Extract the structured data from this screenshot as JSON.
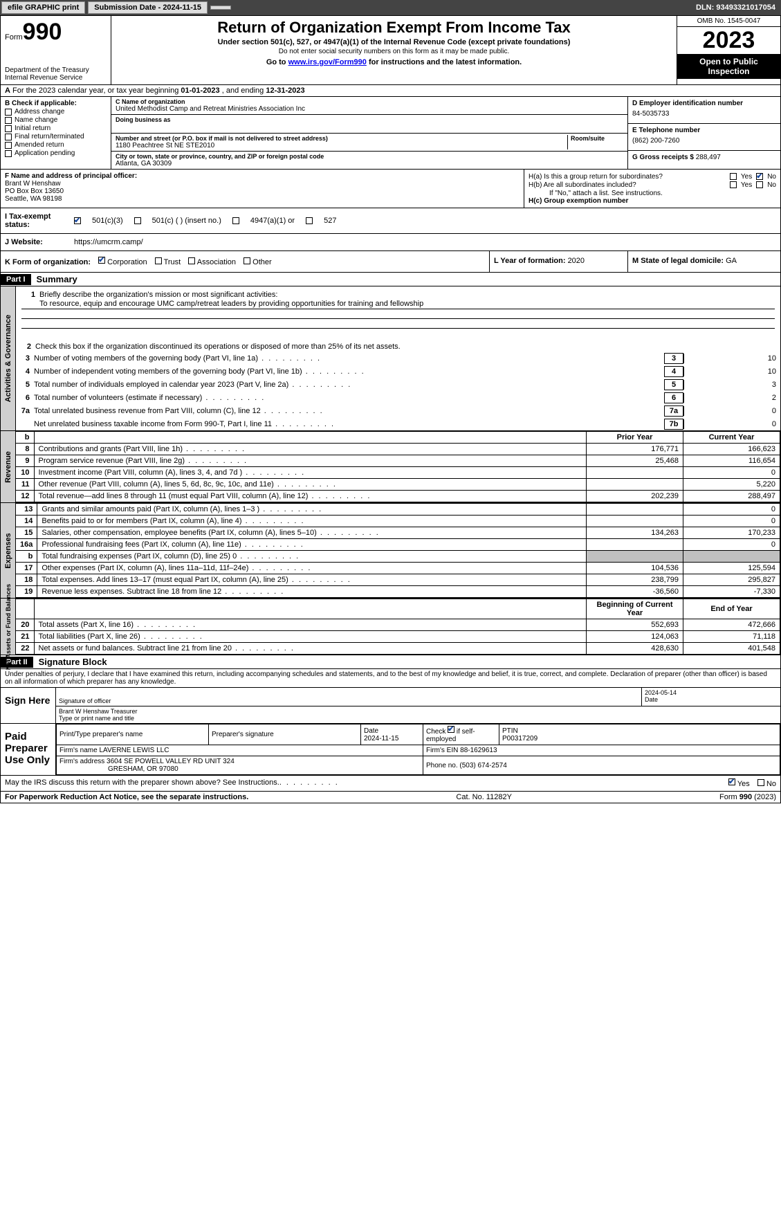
{
  "toolbar": {
    "efile_btn": "efile GRAPHIC print",
    "submission_label": "Submission Date - 2024-11-15",
    "dln": "DLN: 93493321017054"
  },
  "header": {
    "form_word": "Form",
    "form_number": "990",
    "dept": "Department of the Treasury",
    "irs": "Internal Revenue Service",
    "title": "Return of Organization Exempt From Income Tax",
    "subtitle": "Under section 501(c), 527, or 4947(a)(1) of the Internal Revenue Code (except private foundations)",
    "note_ssn": "Do not enter social security numbers on this form as it may be made public.",
    "goto_prefix": "Go to ",
    "goto_link": "www.irs.gov/Form990",
    "goto_suffix": " for instructions and the latest information.",
    "omb": "OMB No. 1545-0047",
    "year": "2023",
    "inspection": "Open to Public Inspection"
  },
  "row_a": {
    "label_a": "A",
    "text": "For the 2023 calendar year, or tax year beginning ",
    "begin": "01-01-2023",
    "mid": "   , and ending ",
    "end": "12-31-2023"
  },
  "col_b": {
    "label": "B Check if applicable:",
    "items": [
      "Address change",
      "Name change",
      "Initial return",
      "Final return/terminated",
      "Amended return",
      "Application pending"
    ]
  },
  "col_c": {
    "name_lbl": "C Name of organization",
    "name": "United Methodist Camp and Retreat Ministries Association Inc",
    "dba_lbl": "Doing business as",
    "dba": "",
    "addr_lbl": "Number and street (or P.O. box if mail is not delivered to street address)",
    "room_lbl": "Room/suite",
    "addr": "1180 Peachtree St NE STE2010",
    "city_lbl": "City or town, state or province, country, and ZIP or foreign postal code",
    "city": "Atlanta, GA  30309"
  },
  "col_d": {
    "ein_lbl": "D Employer identification number",
    "ein": "84-5035733",
    "tel_lbl": "E Telephone number",
    "tel": "(862) 200-7260",
    "gross_lbl": "G Gross receipts $ ",
    "gross": "288,497"
  },
  "row_f": {
    "lbl": "F  Name and address of principal officer:",
    "name": "Brant W Henshaw",
    "addr1": "PO Box Box 13650",
    "addr2": "Seattle, WA  98198"
  },
  "row_h": {
    "ha_lbl": "H(a)  Is this a group return for subordinates?",
    "hb_lbl": "H(b)  Are all subordinates included?",
    "hb_note": "If \"No,\" attach a list. See instructions.",
    "hc_lbl": "H(c)  Group exemption number ",
    "yes": "Yes",
    "no": "No"
  },
  "row_i": {
    "lbl": "I  Tax-exempt status:",
    "opt1": "501(c)(3)",
    "opt2": "501(c) (  ) (insert no.)",
    "opt3": "4947(a)(1) or",
    "opt4": "527"
  },
  "row_j": {
    "lbl": "J  Website: ",
    "url": "https://umcrm.camp/"
  },
  "row_k": {
    "lbl": "K Form of organization:",
    "opts": [
      "Corporation",
      "Trust",
      "Association",
      "Other"
    ],
    "l_lbl": "L Year of formation: ",
    "l_val": "2020",
    "m_lbl": "M State of legal domicile: ",
    "m_val": "GA"
  },
  "part1": {
    "header": "Part I",
    "title": "Summary"
  },
  "mission": {
    "num": "1",
    "lbl": "Briefly describe the organization's mission or most significant activities:",
    "text": "To resource, equip and encourage UMC camp/retreat leaders by providing opportunities for training and fellowship"
  },
  "gov_lines": {
    "l2": {
      "num": "2",
      "txt": "Check this box       if the organization discontinued its operations or disposed of more than 25% of its net assets."
    },
    "l3": {
      "num": "3",
      "txt": "Number of voting members of the governing body (Part VI, line 1a)",
      "box": "3",
      "val": "10"
    },
    "l4": {
      "num": "4",
      "txt": "Number of independent voting members of the governing body (Part VI, line 1b)",
      "box": "4",
      "val": "10"
    },
    "l5": {
      "num": "5",
      "txt": "Total number of individuals employed in calendar year 2023 (Part V, line 2a)",
      "box": "5",
      "val": "3"
    },
    "l6": {
      "num": "6",
      "txt": "Total number of volunteers (estimate if necessary)",
      "box": "6",
      "val": "2"
    },
    "l7a": {
      "num": "7a",
      "txt": "Total unrelated business revenue from Part VIII, column (C), line 12",
      "box": "7a",
      "val": "0"
    },
    "l7b": {
      "num": "",
      "txt": "Net unrelated business taxable income from Form 990-T, Part I, line 11",
      "box": "7b",
      "val": "0"
    }
  },
  "rev_hdr": {
    "b": "b",
    "prior": "Prior Year",
    "current": "Current Year"
  },
  "revenue": [
    {
      "num": "8",
      "txt": "Contributions and grants (Part VIII, line 1h)",
      "prior": "176,771",
      "current": "166,623"
    },
    {
      "num": "9",
      "txt": "Program service revenue (Part VIII, line 2g)",
      "prior": "25,468",
      "current": "116,654"
    },
    {
      "num": "10",
      "txt": "Investment income (Part VIII, column (A), lines 3, 4, and 7d )",
      "prior": "",
      "current": "0"
    },
    {
      "num": "11",
      "txt": "Other revenue (Part VIII, column (A), lines 5, 6d, 8c, 9c, 10c, and 11e)",
      "prior": "",
      "current": "5,220"
    },
    {
      "num": "12",
      "txt": "Total revenue—add lines 8 through 11 (must equal Part VIII, column (A), line 12)",
      "prior": "202,239",
      "current": "288,497"
    }
  ],
  "expenses": [
    {
      "num": "13",
      "txt": "Grants and similar amounts paid (Part IX, column (A), lines 1–3 )",
      "prior": "",
      "current": "0"
    },
    {
      "num": "14",
      "txt": "Benefits paid to or for members (Part IX, column (A), line 4)",
      "prior": "",
      "current": "0"
    },
    {
      "num": "15",
      "txt": "Salaries, other compensation, employee benefits (Part IX, column (A), lines 5–10)",
      "prior": "134,263",
      "current": "170,233"
    },
    {
      "num": "16a",
      "txt": "Professional fundraising fees (Part IX, column (A), line 11e)",
      "prior": "",
      "current": "0"
    },
    {
      "num": "b",
      "txt": "Total fundraising expenses (Part IX, column (D), line 25) 0",
      "prior": "SHADE",
      "current": "SHADE"
    },
    {
      "num": "17",
      "txt": "Other expenses (Part IX, column (A), lines 11a–11d, 11f–24e)",
      "prior": "104,536",
      "current": "125,594"
    },
    {
      "num": "18",
      "txt": "Total expenses. Add lines 13–17 (must equal Part IX, column (A), line 25)",
      "prior": "238,799",
      "current": "295,827"
    },
    {
      "num": "19",
      "txt": "Revenue less expenses. Subtract line 18 from line 12",
      "prior": "-36,560",
      "current": "-7,330"
    }
  ],
  "net_hdr": {
    "begin": "Beginning of Current Year",
    "end": "End of Year"
  },
  "netassets": [
    {
      "num": "20",
      "txt": "Total assets (Part X, line 16)",
      "prior": "552,693",
      "current": "472,666"
    },
    {
      "num": "21",
      "txt": "Total liabilities (Part X, line 26)",
      "prior": "124,063",
      "current": "71,118"
    },
    {
      "num": "22",
      "txt": "Net assets or fund balances. Subtract line 21 from line 20",
      "prior": "428,630",
      "current": "401,548"
    }
  ],
  "side_labels": {
    "gov": "Activities & Governance",
    "rev": "Revenue",
    "exp": "Expenses",
    "net": "Net Assets or Fund Balances"
  },
  "part2": {
    "header": "Part II",
    "title": "Signature Block"
  },
  "sig_decl": "Under penalties of perjury, I declare that I have examined this return, including accompanying schedules and statements, and to the best of my knowledge and belief, it is true, correct, and complete. Declaration of preparer (other than officer) is based on all information of which preparer has any knowledge.",
  "sign_here": {
    "lbl": "Sign Here",
    "sig_lbl": "Signature of officer",
    "date_lbl": "Date",
    "date": "2024-05-14",
    "name": "Brant W Henshaw  Treasurer",
    "name_lbl": "Type or print name and title"
  },
  "paid_prep": {
    "lbl": "Paid Preparer Use Only",
    "h_name": "Print/Type preparer's name",
    "h_sig": "Preparer's signature",
    "h_date": "Date",
    "date": "2024-11-15",
    "h_check": "Check        if self-employed",
    "h_ptin": "PTIN",
    "ptin": "P00317209",
    "firm_lbl": "Firm's name    ",
    "firm": "LAVERNE LEWIS LLC",
    "ein_lbl": "Firm's EIN ",
    "ein": "88-1629613",
    "addr_lbl": "Firm's address ",
    "addr1": "3604 SE POWELL VALLEY RD UNIT 324",
    "addr2": "GRESHAM, OR  97080",
    "phone_lbl": "Phone no. ",
    "phone": "(503) 674-2574"
  },
  "discuss": {
    "txt": "May the IRS discuss this return with the preparer shown above? See Instructions.",
    "yes": "Yes",
    "no": "No"
  },
  "footer": {
    "left": "For Paperwork Reduction Act Notice, see the separate instructions.",
    "mid": "Cat. No. 11282Y",
    "right_form": "Form ",
    "right_num": "990",
    "right_year": " (2023)"
  },
  "colors": {
    "toolbar_bg": "#444444",
    "link": "#0000ee",
    "check": "#1a4aa0",
    "shade": "#c0c0c0",
    "side": "#d0d0d0"
  }
}
